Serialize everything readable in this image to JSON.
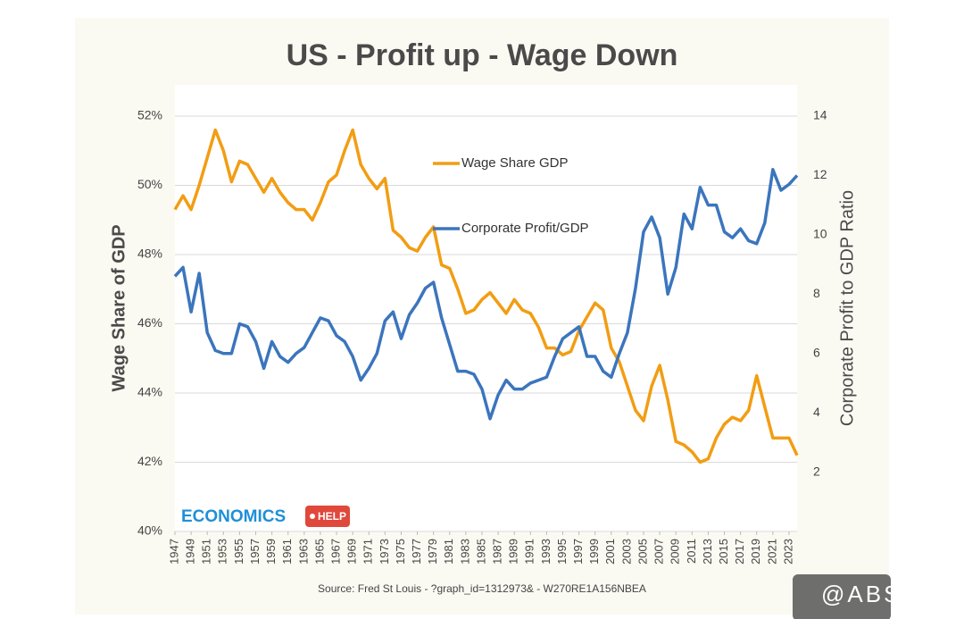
{
  "chart_data": {
    "type": "line",
    "title": "US - Profit up - Wage Down",
    "ylabel": "Wage Share of GDP",
    "y2label": "Corporate Profit to GDP Ratio",
    "source": "Source: Fred St Louis - ?graph_id=1312973& - W270RE1A156NBEA",
    "logo": {
      "text": "ECONOMICS",
      "badge": "HELP"
    },
    "watermark": "@ABSANA",
    "x": [
      1947,
      1948,
      1949,
      1950,
      1951,
      1952,
      1953,
      1954,
      1955,
      1956,
      1957,
      1958,
      1959,
      1960,
      1961,
      1962,
      1963,
      1964,
      1965,
      1966,
      1967,
      1968,
      1969,
      1970,
      1971,
      1972,
      1973,
      1974,
      1975,
      1976,
      1977,
      1978,
      1979,
      1980,
      1981,
      1982,
      1983,
      1984,
      1985,
      1986,
      1987,
      1988,
      1989,
      1990,
      1991,
      1992,
      1993,
      1994,
      1995,
      1996,
      1997,
      1998,
      1999,
      2000,
      2001,
      2002,
      2003,
      2004,
      2005,
      2006,
      2007,
      2008,
      2009,
      2010,
      2011,
      2012,
      2013,
      2014,
      2015,
      2016,
      2017,
      2018,
      2019,
      2020,
      2021,
      2022,
      2023,
      2024
    ],
    "xlim": [
      1947,
      2024
    ],
    "xticks": [
      1947,
      1949,
      1951,
      1953,
      1955,
      1957,
      1959,
      1961,
      1963,
      1965,
      1967,
      1969,
      1971,
      1973,
      1975,
      1977,
      1979,
      1981,
      1983,
      1985,
      1987,
      1989,
      1991,
      1993,
      1995,
      1997,
      1999,
      2001,
      2003,
      2005,
      2007,
      2009,
      2011,
      2013,
      2015,
      2017,
      2019,
      2021,
      2023
    ],
    "ylim": [
      40,
      52
    ],
    "yticks": [
      {
        "value": 40,
        "label": "40%"
      },
      {
        "value": 42,
        "label": "42%"
      },
      {
        "value": 44,
        "label": "44%"
      },
      {
        "value": 46,
        "label": "46%"
      },
      {
        "value": 48,
        "label": "48%"
      },
      {
        "value": 50,
        "label": "50%"
      },
      {
        "value": 52,
        "label": "52%"
      }
    ],
    "y2lim": [
      0,
      14
    ],
    "y2ticks": [
      2,
      4,
      6,
      8,
      10,
      12,
      14
    ],
    "grid": true,
    "series": [
      {
        "name": "Wage Share GDP",
        "color": "#f29d13",
        "values": [
          49.3,
          49.7,
          49.3,
          50.0,
          50.8,
          51.6,
          51.0,
          50.1,
          50.7,
          50.6,
          50.2,
          49.8,
          50.2,
          49.8,
          49.5,
          49.3,
          49.3,
          49.0,
          49.5,
          50.1,
          50.3,
          51.0,
          51.6,
          50.6,
          50.2,
          49.9,
          50.2,
          48.7,
          48.5,
          48.2,
          48.1,
          48.5,
          48.8,
          47.7,
          47.6,
          47.0,
          46.3,
          46.4,
          46.7,
          46.9,
          46.6,
          46.3,
          46.7,
          46.4,
          46.3,
          45.9,
          45.3,
          45.3,
          45.1,
          45.2,
          45.8,
          46.2,
          46.6,
          46.4,
          45.3,
          44.9,
          44.2,
          43.5,
          43.2,
          44.2,
          44.8,
          43.8,
          42.6,
          42.5,
          42.3,
          42.0,
          42.1,
          42.7,
          43.1,
          43.3,
          43.2,
          43.5,
          44.5,
          43.6,
          42.7,
          42.7,
          42.7,
          42.2
        ]
      },
      {
        "name": "Corporate Profit/GDP",
        "color": "#3b75bd",
        "axis": "y2",
        "values": [
          8.6,
          8.9,
          7.4,
          8.7,
          6.7,
          6.1,
          6.0,
          6.0,
          7.0,
          6.9,
          6.4,
          5.5,
          6.4,
          5.9,
          5.7,
          6.0,
          6.2,
          6.7,
          7.2,
          7.1,
          6.6,
          6.4,
          5.9,
          5.1,
          5.5,
          6.0,
          7.1,
          7.4,
          6.5,
          7.3,
          7.7,
          8.2,
          8.4,
          7.2,
          6.3,
          5.4,
          5.4,
          5.3,
          4.8,
          3.8,
          4.6,
          5.1,
          4.8,
          4.8,
          5.0,
          5.1,
          5.2,
          5.9,
          6.5,
          6.7,
          6.9,
          5.9,
          5.9,
          5.4,
          5.2,
          6.0,
          6.7,
          8.2,
          10.1,
          10.6,
          9.9,
          8.0,
          8.9,
          10.7,
          10.2,
          11.6,
          11.0,
          11.0,
          10.1,
          9.9,
          10.2,
          9.8,
          9.7,
          10.4,
          12.2,
          11.5,
          11.7,
          12.0
        ]
      }
    ]
  }
}
